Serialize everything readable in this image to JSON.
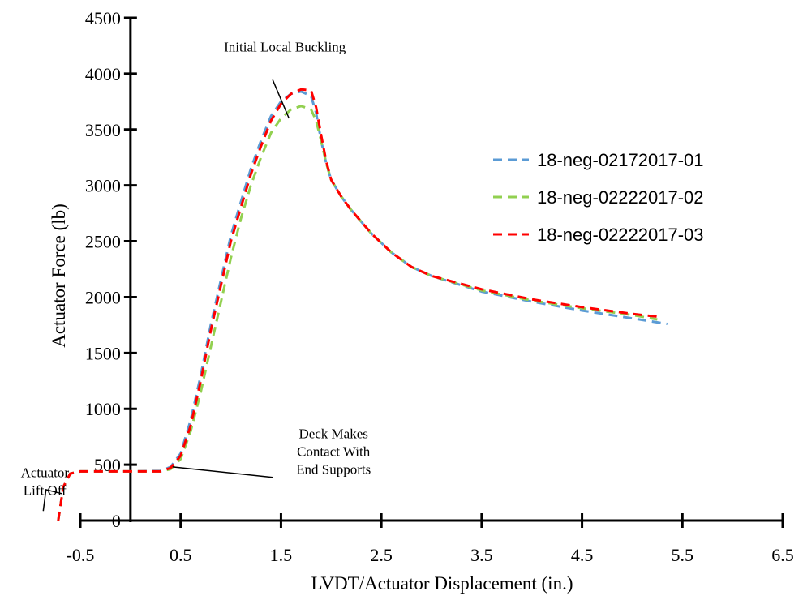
{
  "chart_data": {
    "type": "line",
    "xlabel": "LVDT/Actuator Displacement (in.)",
    "ylabel": "Actuator Force (lb)",
    "xlim": [
      -0.5,
      6.5
    ],
    "ylim": [
      0,
      4500
    ],
    "x_ticks": [
      "-0.5",
      "0.5",
      "1.5",
      "2.5",
      "3.5",
      "4.5",
      "5.5",
      "6.5"
    ],
    "x_tick_values": [
      -0.5,
      0.5,
      1.5,
      2.5,
      3.5,
      4.5,
      5.5,
      6.5
    ],
    "y_ticks": [
      "0",
      "500",
      "1000",
      "1500",
      "2000",
      "2500",
      "3000",
      "3500",
      "4000",
      "4500"
    ],
    "y_tick_values": [
      0,
      500,
      1000,
      1500,
      2000,
      2500,
      3000,
      3500,
      4000,
      4500
    ],
    "y_axis_at_x": 0,
    "grid": false,
    "legend_position": "right",
    "series": [
      {
        "name": "18-neg-02172017-01",
        "color": "#5B9BD5",
        "x": [
          -0.72,
          -0.67,
          -0.6,
          -0.5,
          -0.3,
          0.0,
          0.3,
          0.4,
          0.5,
          0.6,
          0.7,
          0.8,
          0.9,
          1.0,
          1.1,
          1.2,
          1.3,
          1.4,
          1.5,
          1.6,
          1.7,
          1.8,
          1.85,
          1.9,
          1.95,
          2.0,
          2.1,
          2.2,
          2.4,
          2.6,
          2.8,
          3.0,
          3.5,
          4.0,
          4.5,
          5.0,
          5.35
        ],
        "y": [
          0,
          300,
          420,
          440,
          440,
          440,
          445,
          480,
          600,
          900,
          1300,
          1750,
          2150,
          2550,
          2850,
          3150,
          3400,
          3620,
          3750,
          3820,
          3840,
          3800,
          3650,
          3400,
          3200,
          3050,
          2900,
          2780,
          2570,
          2400,
          2270,
          2190,
          2050,
          1960,
          1880,
          1810,
          1760
        ]
      },
      {
        "name": "18-neg-02222017-02",
        "color": "#92D050",
        "x": [
          -0.72,
          -0.67,
          -0.6,
          -0.5,
          -0.3,
          0.0,
          0.3,
          0.4,
          0.5,
          0.6,
          0.7,
          0.8,
          0.9,
          1.0,
          1.1,
          1.2,
          1.3,
          1.4,
          1.5,
          1.6,
          1.7,
          1.8,
          1.85,
          1.9,
          1.95,
          2.0,
          2.1,
          2.2,
          2.4,
          2.6,
          2.8,
          3.0,
          3.5,
          4.0,
          4.5,
          5.0,
          5.25
        ],
        "y": [
          0,
          300,
          420,
          440,
          440,
          440,
          440,
          460,
          550,
          800,
          1150,
          1550,
          1950,
          2350,
          2700,
          3000,
          3250,
          3470,
          3600,
          3680,
          3710,
          3680,
          3580,
          3400,
          3200,
          3050,
          2900,
          2780,
          2570,
          2400,
          2270,
          2190,
          2060,
          1970,
          1900,
          1840,
          1800
        ]
      },
      {
        "name": "18-neg-02222017-03",
        "color": "#FF0000",
        "x": [
          -0.72,
          -0.67,
          -0.6,
          -0.5,
          -0.3,
          0.0,
          0.3,
          0.4,
          0.5,
          0.6,
          0.7,
          0.8,
          0.9,
          1.0,
          1.1,
          1.2,
          1.3,
          1.4,
          1.5,
          1.6,
          1.7,
          1.8,
          1.85,
          1.9,
          1.95,
          2.0,
          2.1,
          2.2,
          2.4,
          2.6,
          2.8,
          3.0,
          3.5,
          4.0,
          4.5,
          5.0,
          5.3
        ],
        "y": [
          0,
          300,
          420,
          440,
          440,
          440,
          440,
          470,
          580,
          850,
          1250,
          1700,
          2100,
          2500,
          2800,
          3100,
          3350,
          3580,
          3730,
          3820,
          3860,
          3850,
          3700,
          3450,
          3220,
          3050,
          2900,
          2780,
          2570,
          2400,
          2270,
          2190,
          2070,
          1980,
          1910,
          1850,
          1820
        ]
      }
    ],
    "annotations": [
      {
        "id": "initial-local-buckling",
        "lines": [
          "Initial Local Buckling"
        ],
        "point": [
          1.58,
          3600
        ],
        "label_anchor": [
          0.77,
          4200
        ]
      },
      {
        "id": "deck-contact",
        "lines": [
          "Deck Makes",
          "Contact With",
          "End Supports"
        ],
        "point": [
          0.42,
          480
        ],
        "label_anchor": [
          1.7,
          590
        ]
      },
      {
        "id": "actuator-lift-off",
        "lines": [
          "Actuator",
          "Lift Off"
        ],
        "point": [
          -0.68,
          240
        ],
        "label_anchor": [
          -0.95,
          390
        ]
      }
    ]
  }
}
